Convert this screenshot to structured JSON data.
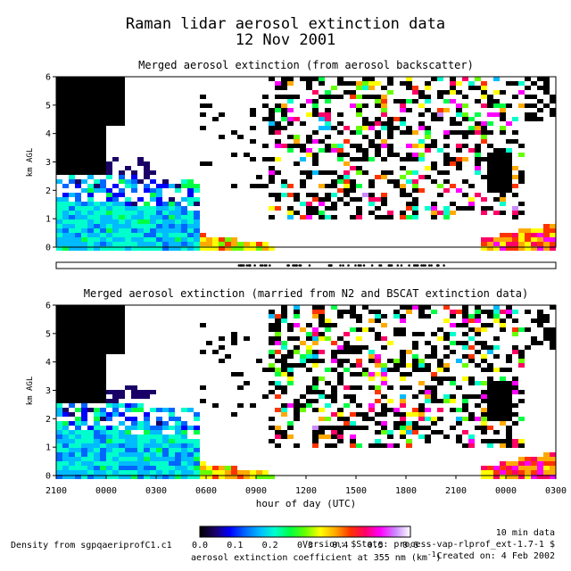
{
  "title": {
    "line1": "Raman lidar aerosol extinction data",
    "line2": "12 Nov 2001"
  },
  "chart_data": [
    {
      "type": "heatmap",
      "title": "Merged aerosol extinction (from aerosol backscatter)",
      "ylabel": "km AGL",
      "ylim": [
        0,
        6
      ],
      "yticks": [
        "0",
        "1",
        "2",
        "3",
        "4",
        "5",
        "6"
      ],
      "xlim_hours": [
        0,
        30
      ],
      "regions": [
        {
          "label": "dense aerosol layer",
          "x": [
            0,
            8.5
          ],
          "top_km": 1.3,
          "value_range": [
            0.05,
            0.25
          ]
        },
        {
          "label": "near-surface enhancement",
          "x": [
            25.5,
            30
          ],
          "top_km": 0.8,
          "value_range": [
            0.3,
            0.6
          ]
        },
        {
          "label": "broken cloud / noisy",
          "x": [
            13,
            28
          ],
          "y": [
            1,
            6
          ]
        }
      ]
    },
    {
      "type": "heatmap",
      "title": "Merged aerosol extinction (married from N2 and BSCAT extinction data)",
      "ylabel": "km AGL",
      "ylim": [
        0,
        6
      ],
      "yticks": [
        "0",
        "1",
        "2",
        "3",
        "4",
        "5",
        "6"
      ],
      "xlabel": "hour of day (UTC)",
      "xticks": [
        "2100",
        "0000",
        "0300",
        "0600",
        "0900",
        "1200",
        "1500",
        "1800",
        "2100",
        "0000",
        "0300"
      ],
      "xlim_hours": [
        0,
        30
      ]
    }
  ],
  "colorbar": {
    "ticks": [
      "0.0",
      "0.1",
      "0.2",
      "0.3",
      "0.4",
      "0.5",
      "0.6"
    ],
    "label": "aerosol extinction coefficient at 355 nm (km",
    "label_sup": "-1",
    "label_end": ")",
    "colors": [
      "#000000",
      "#1a0066",
      "#0000ff",
      "#0066ff",
      "#00bbff",
      "#00ffcc",
      "#00ff44",
      "#66ff00",
      "#ffff00",
      "#ffaa00",
      "#ff3300",
      "#ff0066",
      "#ff00ff",
      "#cc88ff",
      "#ffffff"
    ]
  },
  "footer": {
    "left": "Density from sgpqaeriprofC1.c1",
    "right_top": "10 min data",
    "version": "Version: $State: process-vap-rlprof_ext-1.7-1 $",
    "created": "Created on:  4 Feb 2002"
  }
}
